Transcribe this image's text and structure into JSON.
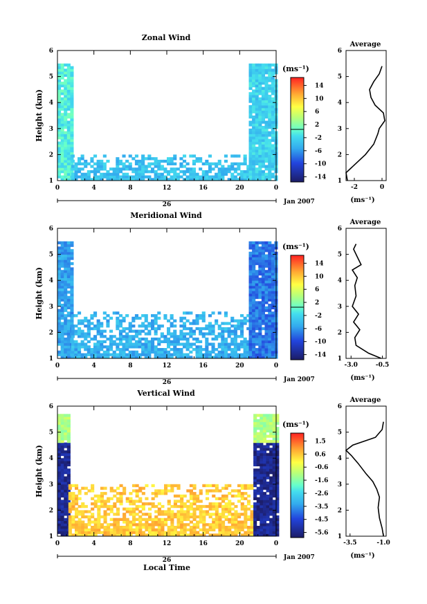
{
  "panels": [
    {
      "title": "Zonal Wind",
      "ylabel": "Height (km)",
      "unit_label": "(ms⁻¹)",
      "colorbar_ticks": [
        "14",
        "10",
        "6",
        "2",
        "-2",
        "-6",
        "-10",
        "-14"
      ],
      "date_label": "26",
      "month_label": "Jan 2007",
      "avg_title": "Average",
      "avg_xticks": [
        "-2",
        "0"
      ],
      "avg_xlabel": "(ms⁻¹)"
    },
    {
      "title": "Meridional Wind",
      "ylabel": "Height (km)",
      "unit_label": "(ms⁻¹)",
      "colorbar_ticks": [
        "14",
        "10",
        "6",
        "2",
        "-2",
        "-6",
        "-10",
        "-14"
      ],
      "date_label": "26",
      "month_label": "Jan 2007",
      "avg_title": "Average",
      "avg_xticks": [
        "-3.0",
        "-0.5"
      ],
      "avg_xlabel": "(ms⁻¹)"
    },
    {
      "title": "Vertical Wind",
      "ylabel": "Height (km)",
      "unit_label": "(ms⁻¹)",
      "colorbar_ticks": [
        "1.5",
        "0.6",
        "-0.6",
        "-1.6",
        "-2.6",
        "-3.5",
        "-4.5",
        "-5.6"
      ],
      "date_label": "26",
      "month_label": "Jan 2007",
      "avg_title": "Average",
      "avg_xticks": [
        "-3.5",
        "-1.0"
      ],
      "avg_xlabel": "(ms⁻¹)",
      "xlabel": "Local Time"
    }
  ],
  "chart_data": [
    {
      "type": "heatmap",
      "title": "Zonal Wind",
      "ylabel": "Height (km)",
      "x_ticks": [
        "0",
        "4",
        "8",
        "12",
        "16",
        "20",
        "0"
      ],
      "y_ticks": [
        "1",
        "2",
        "3",
        "4",
        "5",
        "6"
      ],
      "xlim": [
        0,
        24
      ],
      "ylim": [
        1,
        6
      ],
      "colorbar": {
        "min": -16,
        "max": 16,
        "ticks": [
          14,
          10,
          6,
          2,
          -2,
          -6,
          -10,
          -14
        ],
        "label": "(ms⁻¹)"
      },
      "colors": {
        "high": "#ff0000",
        "mid": "#ffff66",
        "zero": "#66ffcc",
        "low": "#1c1c66"
      },
      "regions": [
        {
          "t0": 0.0,
          "t1": 1.5,
          "h0": 1.0,
          "h1": 5.5,
          "value": -1
        },
        {
          "t0": 1.5,
          "t1": 21.0,
          "h0": 1.0,
          "h1": 2.0,
          "value": -4
        },
        {
          "t0": 21.0,
          "t1": 24.0,
          "h0": 1.0,
          "h1": 5.5,
          "value": -3
        }
      ],
      "average": {
        "xlim": [
          -2.6,
          0.3
        ],
        "xticks": [
          -2,
          0
        ],
        "height": [
          1.0,
          1.3,
          1.6,
          2.0,
          2.4,
          2.8,
          3.0,
          3.3,
          3.6,
          3.9,
          4.2,
          4.5,
          4.8,
          5.1,
          5.4
        ],
        "value": [
          -2.5,
          -2.6,
          -2.0,
          -1.2,
          -0.6,
          -0.3,
          -0.2,
          0.2,
          0.1,
          -0.5,
          -0.8,
          -0.9,
          -0.6,
          -0.2,
          0.0
        ]
      }
    },
    {
      "type": "heatmap",
      "title": "Meridional Wind",
      "ylabel": "Height (km)",
      "x_ticks": [
        "0",
        "4",
        "8",
        "12",
        "16",
        "20",
        "0"
      ],
      "y_ticks": [
        "1",
        "2",
        "3",
        "4",
        "5",
        "6"
      ],
      "xlim": [
        0,
        24
      ],
      "ylim": [
        1,
        6
      ],
      "colorbar": {
        "min": -16,
        "max": 16,
        "ticks": [
          14,
          10,
          6,
          2,
          -2,
          -6,
          -10,
          -14
        ],
        "label": "(ms⁻¹)"
      },
      "colors": {
        "high": "#ff0000",
        "mid": "#ffff66",
        "zero": "#66ffcc",
        "low": "#1c1c66"
      },
      "regions": [
        {
          "t0": 0.0,
          "t1": 1.5,
          "h0": 1.0,
          "h1": 5.5,
          "value": -6
        },
        {
          "t0": 1.5,
          "t1": 21.0,
          "h0": 1.0,
          "h1": 2.8,
          "value": -5
        },
        {
          "t0": 21.0,
          "t1": 24.0,
          "h0": 1.0,
          "h1": 5.5,
          "value": -8
        }
      ],
      "average": {
        "xlim": [
          -3.4,
          -0.2
        ],
        "xticks": [
          -3.0,
          -0.5
        ],
        "height": [
          1.0,
          1.2,
          1.5,
          1.8,
          2.1,
          2.4,
          2.7,
          3.0,
          3.4,
          3.8,
          4.1,
          4.4,
          4.6,
          4.9,
          5.2,
          5.4
        ],
        "value": [
          -0.6,
          -1.6,
          -2.6,
          -2.7,
          -2.3,
          -2.8,
          -2.4,
          -2.9,
          -2.6,
          -2.7,
          -2.5,
          -2.9,
          -2.2,
          -2.5,
          -2.8,
          -2.6
        ]
      }
    },
    {
      "type": "heatmap",
      "title": "Vertical Wind",
      "ylabel": "Height (km)",
      "xlabel": "Local Time",
      "x_ticks": [
        "0",
        "4",
        "8",
        "12",
        "16",
        "20",
        "0"
      ],
      "y_ticks": [
        "1",
        "2",
        "3",
        "4",
        "5",
        "6"
      ],
      "xlim": [
        0,
        24
      ],
      "ylim": [
        1,
        6
      ],
      "colorbar": {
        "min": -6.1,
        "max": 2.0,
        "ticks": [
          1.5,
          0.6,
          -0.6,
          -1.6,
          -2.6,
          -3.5,
          -4.5,
          -5.6
        ],
        "label": "(ms⁻¹)"
      },
      "colors": {
        "high": "#ff0000",
        "mid": "#ffcc33",
        "zero": "#66ffcc",
        "low": "#1c1c66"
      },
      "regions": [
        {
          "t0": 0.0,
          "t1": 1.2,
          "h0": 1.0,
          "h1": 4.6,
          "value": -5.6
        },
        {
          "t0": 0.0,
          "t1": 1.2,
          "h0": 4.6,
          "h1": 5.7,
          "value": -1.2
        },
        {
          "t0": 1.2,
          "t1": 21.5,
          "h0": 1.0,
          "h1": 3.0,
          "value": 0.3
        },
        {
          "t0": 21.5,
          "t1": 24.0,
          "h0": 1.0,
          "h1": 4.6,
          "value": -5.6
        },
        {
          "t0": 21.5,
          "t1": 24.0,
          "h0": 4.6,
          "h1": 5.7,
          "value": -1.2
        }
      ],
      "average": {
        "xlim": [
          -3.8,
          -0.8
        ],
        "xticks": [
          -3.5,
          -1.0
        ],
        "height": [
          1.0,
          1.3,
          1.7,
          2.1,
          2.5,
          2.8,
          3.1,
          3.4,
          3.8,
          4.1,
          4.3,
          4.5,
          4.8,
          5.1,
          5.4
        ],
        "value": [
          -1.0,
          -1.1,
          -1.3,
          -1.4,
          -1.3,
          -1.5,
          -1.8,
          -2.3,
          -2.9,
          -3.4,
          -3.8,
          -3.3,
          -1.6,
          -1.1,
          -1.0
        ]
      }
    }
  ]
}
